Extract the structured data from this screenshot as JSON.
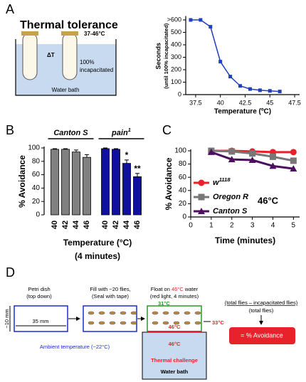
{
  "panel_labels": [
    "A",
    "B",
    "C",
    "D"
  ],
  "diagram_a": {
    "title": "Thermal tolerance",
    "delta": "ΔT",
    "temp": "37-46°C",
    "note": [
      "100%",
      "incapacitated"
    ],
    "bath": "Water bath"
  },
  "chart_data": [
    {
      "type": "line",
      "ylabel": [
        "Seconds",
        "(until 100% incapacitated)"
      ],
      "xlabel": "Temperature (ºC)",
      "x": [
        37,
        38,
        39,
        40,
        41,
        42,
        43,
        44,
        45,
        46
      ],
      "values": [
        600,
        600,
        545,
        265,
        145,
        70,
        45,
        35,
        30,
        25
      ],
      "color": "#1f3fbf",
      "xlim": [
        36.5,
        48
      ],
      "ylim": [
        0,
        620
      ],
      "xticks": [
        37.5,
        40,
        42.5,
        45,
        47.5
      ],
      "yticks": [
        0,
        100,
        200,
        300,
        400,
        500,
        {
          "value": 600,
          "label": ">600"
        }
      ]
    },
    {
      "type": "bar",
      "ylabel": "% Avoidance",
      "xlabel": [
        "Temperature (°C)",
        "(4 minutes)"
      ],
      "categories": [
        "40",
        "42",
        "44",
        "46"
      ],
      "series": [
        {
          "name": "Canton S",
          "color": "#808080",
          "values": [
            98,
            98,
            94,
            86
          ],
          "errors": [
            1,
            1,
            3,
            4
          ]
        },
        {
          "name": "pain",
          "name_sup": "1",
          "color": "#1010a0",
          "values": [
            99,
            98,
            77,
            57
          ],
          "errors": [
            1,
            1,
            5,
            5
          ],
          "annotations": [
            null,
            null,
            "*",
            "**"
          ]
        }
      ],
      "ylim": [
        0,
        100
      ],
      "yticks": [
        0,
        20,
        40,
        60,
        80,
        100
      ]
    },
    {
      "type": "line",
      "ylabel": "% Avoidance",
      "xlabel": "Time (minutes)",
      "annotation": "46°C",
      "x": [
        1,
        2,
        3,
        4,
        5
      ],
      "series": [
        {
          "name": "w",
          "name_sup": "1118",
          "color": "#e8222a",
          "values": [
            100,
            100,
            99,
            98,
            98
          ]
        },
        {
          "name": "Oregon R",
          "color": "#777777",
          "values": [
            100,
            99,
            96,
            91,
            85
          ]
        },
        {
          "name": "Canton S",
          "color": "#4b0f5e",
          "values": [
            98,
            87,
            86,
            77,
            73
          ]
        }
      ],
      "xlim": [
        0,
        5.3
      ],
      "ylim": [
        0,
        100
      ],
      "xticks": [
        0,
        1,
        2,
        3,
        4,
        5
      ],
      "yticks": [
        0,
        20,
        40,
        60,
        80,
        100
      ]
    }
  ],
  "diagram_d": {
    "dish": [
      "Petri dish",
      "(top down)"
    ],
    "height": "~10 mm",
    "width": "35 mm",
    "ambient": "Ambient temperature (~22°C)",
    "fill": [
      "Fill with ~20 flies,",
      "(Seal with tape)"
    ],
    "float": [
      "Float on ",
      "46°C",
      " water"
    ],
    "float_note": "(red light, 4 minutes)",
    "top_temp": "31°C",
    "side_temp": "33°C",
    "floor_temp": "46°C",
    "bath_temp": "46°C",
    "challenge": "Thermal challenge",
    "bath": "Water bath",
    "numerator": "(total flies – incapacitated flies)",
    "denominator": "(total flies)",
    "result": "= % Avoidance"
  }
}
